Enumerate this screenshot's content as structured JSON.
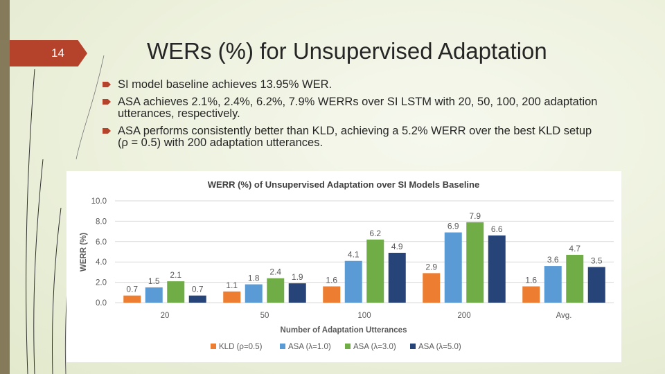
{
  "slide": {
    "page_number": "14",
    "title": "WERs (%) for Unsupervised Adaptation",
    "accent_color": "#b5432c",
    "bullets": [
      "SI model baseline achieves 13.95% WER.",
      "ASA achieves 2.1%, 2.4%, 6.2%, 7.9% WERRs over SI LSTM with 20, 50, 100, 200 adaptation utterances, respectively.",
      "ASA performs consistently better than KLD, achieving a 5.2% WERR over the best KLD setup (ρ = 0.5) with 200 adaptation utterances."
    ]
  },
  "chart_data": {
    "type": "bar",
    "title": "WERR (%) of Unsupervised Adaptation over SI Models Baseline",
    "xlabel": "Number of Adaptation Utterances",
    "ylabel": "WERR (%)",
    "ylim": [
      0,
      10
    ],
    "yticks": [
      "10.0",
      "8.0",
      "6.0",
      "4.0",
      "2.0",
      "0.0"
    ],
    "grid": true,
    "legend_position": "bottom",
    "categories": [
      "20",
      "50",
      "100",
      "200",
      "Avg."
    ],
    "series": [
      {
        "name": "KLD (ρ=0.5)",
        "color": "#ed7d31",
        "values": [
          0.7,
          1.1,
          1.6,
          2.9,
          1.6
        ]
      },
      {
        "name": "ASA (λ=1.0)",
        "color": "#5b9bd5",
        "values": [
          1.5,
          1.8,
          4.1,
          6.9,
          3.6
        ]
      },
      {
        "name": "ASA (λ=3.0)",
        "color": "#70ad47",
        "values": [
          2.1,
          2.4,
          6.2,
          7.9,
          4.7
        ]
      },
      {
        "name": "ASA (λ=5.0)",
        "color": "#264478",
        "values": [
          0.7,
          1.9,
          4.9,
          6.6,
          3.5
        ]
      }
    ]
  }
}
